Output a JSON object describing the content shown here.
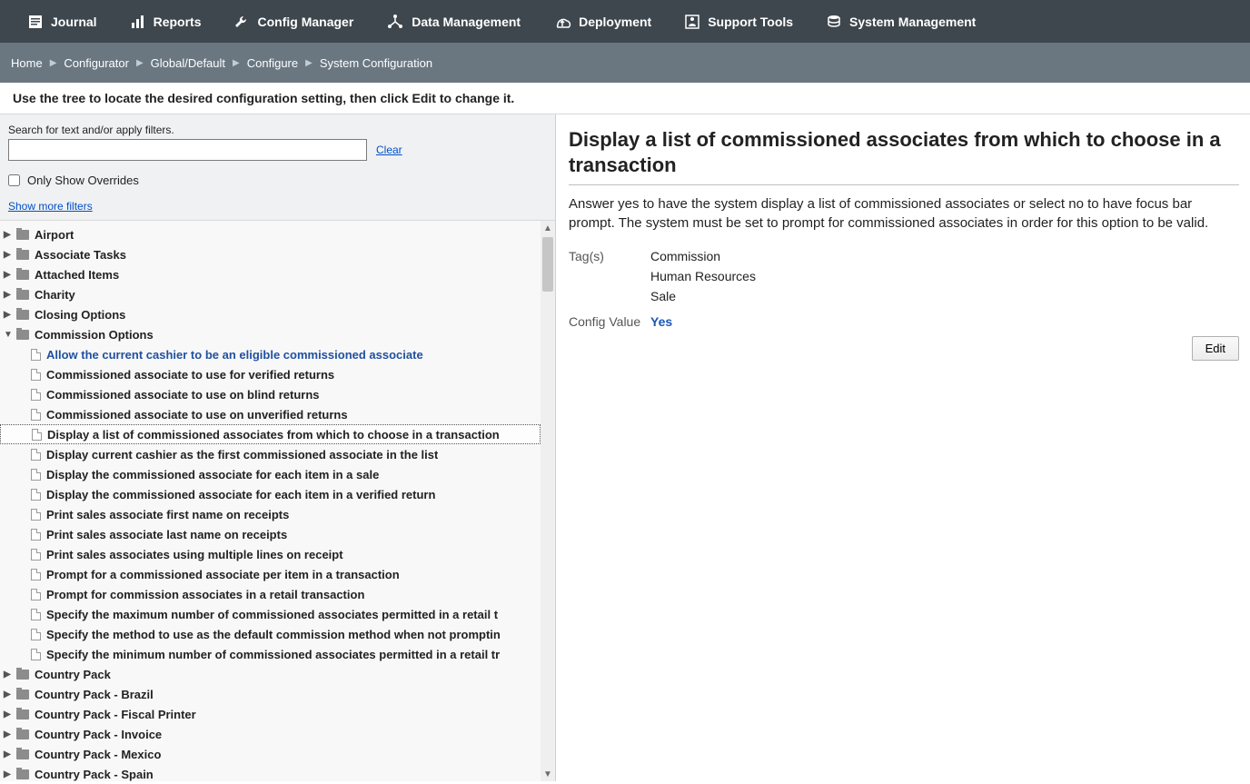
{
  "topnav": [
    {
      "label": "Journal",
      "icon": "journal-icon"
    },
    {
      "label": "Reports",
      "icon": "reports-icon"
    },
    {
      "label": "Config Manager",
      "icon": "wrench-icon"
    },
    {
      "label": "Data Management",
      "icon": "data-mgmt-icon"
    },
    {
      "label": "Deployment",
      "icon": "deployment-icon"
    },
    {
      "label": "Support Tools",
      "icon": "support-icon"
    },
    {
      "label": "System Management",
      "icon": "system-mgmt-icon"
    }
  ],
  "breadcrumb": [
    "Home",
    "Configurator",
    "Global/Default",
    "Configure",
    "System Configuration"
  ],
  "instruction": "Use the tree to locate the desired configuration setting, then click Edit to change it.",
  "filter": {
    "label": "Search for text and/or apply filters.",
    "value": "",
    "clear": "Clear",
    "only_overrides_label": "Only Show Overrides",
    "only_overrides_checked": false,
    "show_more": "Show more filters"
  },
  "tree": [
    {
      "label": "Airport",
      "type": "folder",
      "depth": 0,
      "expanded": false
    },
    {
      "label": "Associate Tasks",
      "type": "folder",
      "depth": 0,
      "expanded": false
    },
    {
      "label": "Attached Items",
      "type": "folder",
      "depth": 0,
      "expanded": false
    },
    {
      "label": "Charity",
      "type": "folder",
      "depth": 0,
      "expanded": false
    },
    {
      "label": "Closing Options",
      "type": "folder",
      "depth": 0,
      "expanded": false
    },
    {
      "label": "Commission Options",
      "type": "folder",
      "depth": 0,
      "expanded": true
    },
    {
      "label": "Allow the current cashier to be an eligible commissioned associate",
      "type": "file",
      "depth": 1,
      "visited": true
    },
    {
      "label": "Commissioned associate to use for verified returns",
      "type": "file",
      "depth": 1
    },
    {
      "label": "Commissioned associate to use on blind returns",
      "type": "file",
      "depth": 1
    },
    {
      "label": "Commissioned associate to use on unverified returns",
      "type": "file",
      "depth": 1
    },
    {
      "label": "Display a list of commissioned associates from which to choose in a transaction",
      "type": "file",
      "depth": 1,
      "selected": true
    },
    {
      "label": "Display current cashier as the first commissioned associate in the list",
      "type": "file",
      "depth": 1
    },
    {
      "label": "Display the commissioned associate for each item in a sale",
      "type": "file",
      "depth": 1
    },
    {
      "label": "Display the commissioned associate for each item in a verified return",
      "type": "file",
      "depth": 1
    },
    {
      "label": "Print sales associate first name on receipts",
      "type": "file",
      "depth": 1
    },
    {
      "label": "Print sales associate last name on receipts",
      "type": "file",
      "depth": 1
    },
    {
      "label": "Print sales associates using multiple lines on receipt",
      "type": "file",
      "depth": 1
    },
    {
      "label": "Prompt for a commissioned associate per item in a transaction",
      "type": "file",
      "depth": 1
    },
    {
      "label": "Prompt for commission associates in a retail transaction",
      "type": "file",
      "depth": 1
    },
    {
      "label": "Specify the maximum number of commissioned associates permitted in a retail t",
      "type": "file",
      "depth": 1
    },
    {
      "label": "Specify the method to use as the default commission method when not promptin",
      "type": "file",
      "depth": 1
    },
    {
      "label": "Specify the minimum number of commissioned associates permitted in a retail tr",
      "type": "file",
      "depth": 1
    },
    {
      "label": "Country Pack",
      "type": "folder",
      "depth": 0,
      "expanded": false
    },
    {
      "label": "Country Pack - Brazil",
      "type": "folder",
      "depth": 0,
      "expanded": false
    },
    {
      "label": "Country Pack - Fiscal Printer",
      "type": "folder",
      "depth": 0,
      "expanded": false
    },
    {
      "label": "Country Pack - Invoice",
      "type": "folder",
      "depth": 0,
      "expanded": false
    },
    {
      "label": "Country Pack - Mexico",
      "type": "folder",
      "depth": 0,
      "expanded": false
    },
    {
      "label": "Country Pack - Spain",
      "type": "folder",
      "depth": 0,
      "expanded": false
    }
  ],
  "detail": {
    "title": "Display a list of commissioned associates from which to choose in a transaction",
    "description": "Answer yes to have the system display a list of commissioned associates or select no to have focus bar prompt. The system must be set to prompt for commissioned associates in order for this option to be valid.",
    "tags_label": "Tag(s)",
    "tags": [
      "Commission",
      "Human Resources",
      "Sale"
    ],
    "config_value_label": "Config Value",
    "config_value": "Yes",
    "edit_label": "Edit"
  },
  "colors": {
    "topbar_bg": "#3e474e",
    "breadcrumb_bg": "#6a7781",
    "link_color": "#0050c8",
    "config_value_color": "#1a56b8"
  }
}
